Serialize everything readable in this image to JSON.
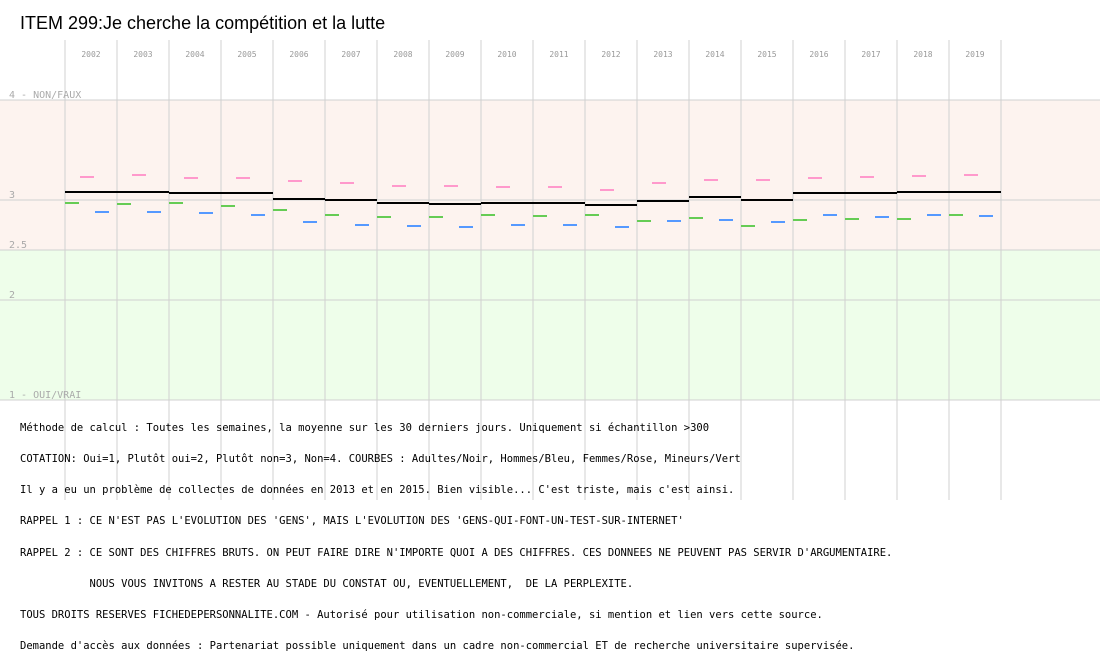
{
  "title": "ITEM 299:Je cherche la compétition et la lutte",
  "chart_data": {
    "type": "line",
    "title": "ITEM 299:Je cherche la compétition et la lutte",
    "categories": [
      "2002",
      "2003",
      "2004",
      "2005",
      "2006",
      "2007",
      "2008",
      "2009",
      "2010",
      "2011",
      "2012",
      "2013",
      "2014",
      "2015",
      "2016",
      "2017",
      "2018",
      "2019"
    ],
    "y_axis_labels": [
      {
        "value": 4,
        "label": "4 - NON/FAUX"
      },
      {
        "value": 3,
        "label": "3"
      },
      {
        "value": 2.5,
        "label": "2.5"
      },
      {
        "value": 2,
        "label": "2"
      },
      {
        "value": 1,
        "label": "1 - OUI/VRAI"
      }
    ],
    "ylim": [
      1,
      4
    ],
    "upper_band_color": "#fdf3ef",
    "lower_band_color": "#eefeea",
    "grid_color": "#d0d0d0",
    "series": [
      {
        "name": "Adultes",
        "color": "#000000",
        "values": [
          3.08,
          3.08,
          3.07,
          3.07,
          3.01,
          3.0,
          2.97,
          2.96,
          2.97,
          2.97,
          2.95,
          2.99,
          3.03,
          3.0,
          3.07,
          3.07,
          3.08,
          3.08
        ]
      },
      {
        "name": "Hommes",
        "color": "#5599ff",
        "values": [
          2.88,
          2.88,
          2.87,
          2.85,
          2.78,
          2.75,
          2.74,
          2.73,
          2.75,
          2.75,
          2.73,
          2.79,
          2.8,
          2.78,
          2.85,
          2.83,
          2.85,
          2.84
        ]
      },
      {
        "name": "Femmes",
        "color": "#ff99cc",
        "values": [
          3.23,
          3.25,
          3.22,
          3.22,
          3.19,
          3.17,
          3.14,
          3.14,
          3.13,
          3.13,
          3.1,
          3.17,
          3.2,
          3.2,
          3.22,
          3.23,
          3.24,
          3.25
        ]
      },
      {
        "name": "Mineurs",
        "color": "#66cc55",
        "values": [
          2.97,
          2.96,
          2.97,
          2.94,
          2.9,
          2.85,
          2.83,
          2.83,
          2.85,
          2.84,
          2.85,
          2.79,
          2.82,
          2.74,
          2.8,
          2.81,
          2.81,
          2.85
        ]
      }
    ]
  },
  "notes": [
    "Méthode de calcul : Toutes les semaines, la moyenne sur les 30 derniers jours. Uniquement si échantillon >300",
    "COTATION: Oui=1, Plutôt oui=2, Plutôt non=3, Non=4. COURBES : Adultes/Noir, Hommes/Bleu, Femmes/Rose, Mineurs/Vert",
    "Il y a eu un problème de collectes de données en 2013 et en 2015. Bien visible... C'est triste, mais c'est ainsi.",
    "RAPPEL 1 : CE N'EST PAS L'EVOLUTION DES 'GENS', MAIS L'EVOLUTION DES 'GENS-QUI-FONT-UN-TEST-SUR-INTERNET'",
    "RAPPEL 2 : CE SONT DES CHIFFRES BRUTS. ON PEUT FAIRE DIRE N'IMPORTE QUOI A DES CHIFFRES. CES DONNEES NE PEUVENT PAS SERVIR D'ARGUMENTAIRE.",
    "           NOUS VOUS INVITONS A RESTER AU STADE DU CONSTAT OU, EVENTUELLEMENT,  DE LA PERPLEXITE.",
    "TOUS DROITS RESERVES FICHEDEPERSONNALITE.COM - Autorisé pour utilisation non-commerciale, si mention et lien vers cette source.",
    "Demande d'accès aux données : Partenariat possible uniquement dans un cadre non-commercial ET de recherche universitaire supervisée."
  ]
}
